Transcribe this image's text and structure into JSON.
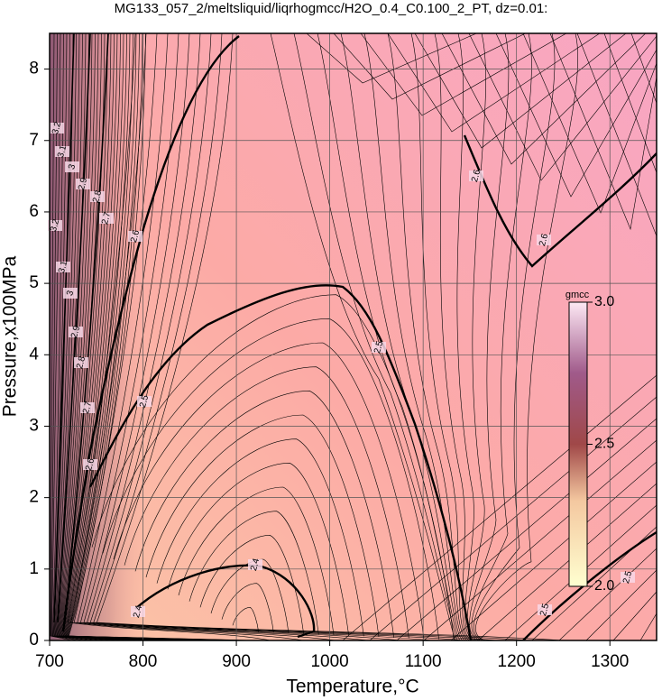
{
  "chart_data": {
    "type": "contour",
    "title": "MG133_057_2/meltsliquid/liqrhogmcc/H2O_0.4_C0.100_2_PT, dz=0.01:",
    "x_label": "Temperature,°C",
    "y_label": "Pressure,x100MPa",
    "xlim": [
      700,
      1350
    ],
    "ylim": [
      0,
      8.5
    ],
    "xticks": [
      700,
      800,
      900,
      1000,
      1100,
      1200,
      1300
    ],
    "yticks": [
      0,
      1,
      2,
      3,
      4,
      5,
      6,
      7,
      8
    ],
    "grid": true,
    "contour_levels": [
      2.4,
      2.5,
      2.5,
      2.6,
      2.6
    ],
    "contour_labels": [
      2.4,
      2.4,
      2.5,
      2.5,
      2.5,
      2.5,
      2.6,
      2.6,
      2.6,
      2.6,
      2.7,
      2.7,
      2.8,
      2.8,
      2.9,
      2.9,
      3,
      3,
      3.1,
      3.1,
      3.2,
      3.2
    ],
    "colorbar": {
      "label": "gmcc",
      "lim": [
        2,
        3
      ],
      "ticks": [
        {
          "value": 2,
          "label": "2.0"
        },
        2.5,
        {
          "value": 3,
          "label": "3.0"
        }
      ]
    }
  }
}
